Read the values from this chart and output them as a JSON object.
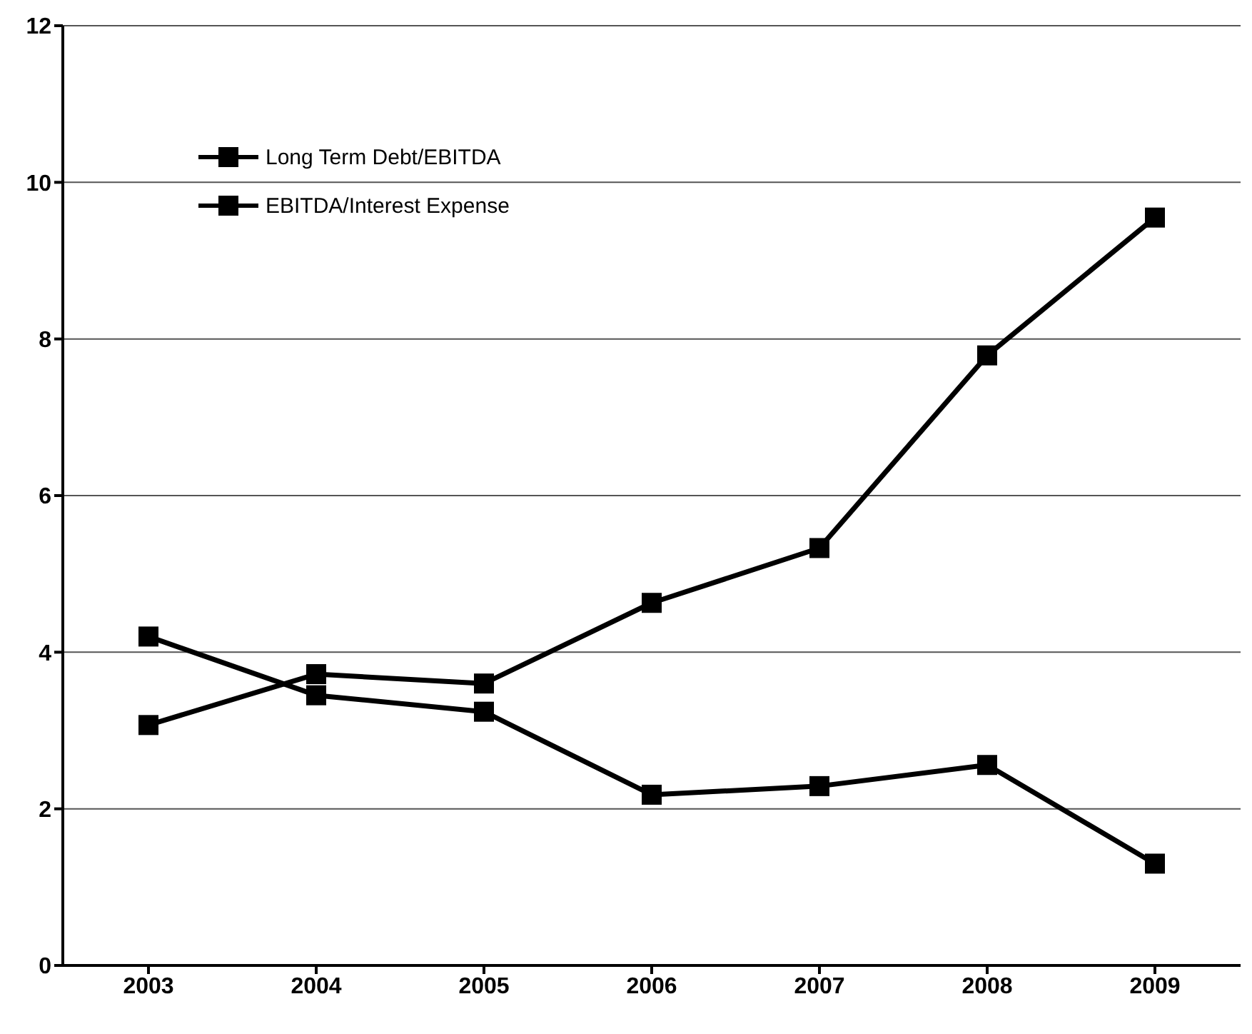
{
  "chart_data": {
    "type": "line",
    "categories": [
      "2003",
      "2004",
      "2005",
      "2006",
      "2007",
      "2008",
      "2009"
    ],
    "series": [
      {
        "name": "Long Term Debt/EBITDA",
        "color": "#000000",
        "values": [
          4.2,
          3.45,
          3.24,
          2.18,
          2.29,
          2.56,
          1.3
        ]
      },
      {
        "name": "EBITDA/Interest Expense",
        "color": "#000000",
        "values": [
          3.07,
          3.72,
          3.6,
          4.63,
          5.33,
          7.79,
          9.55
        ]
      }
    ],
    "ylim": [
      0,
      12
    ],
    "yticks": [
      0,
      2,
      4,
      6,
      8,
      10,
      12
    ],
    "grid": "y",
    "legend": "top left",
    "marker": "square",
    "line_style": "solid"
  }
}
